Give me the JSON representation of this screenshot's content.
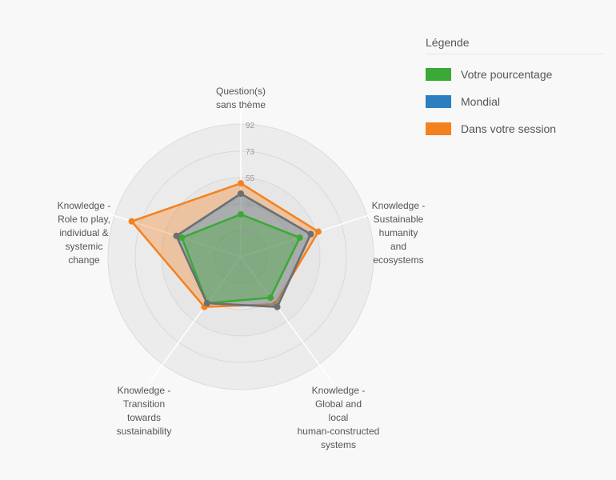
{
  "chart_data": {
    "type": "radar",
    "axes": [
      "Question(s)\nsans thème",
      "Knowledge -\nSustainable\nhumanity\nand\necosystems",
      "Knowledge -\nGlobal and\nlocal\nhuman-constructed\nsystems",
      "Knowledge -\nTransition\ntowards\nsustainability",
      "Knowledge -\nRole to play,\nindividual &\nsystemic\nchange"
    ],
    "ticks": [
      18,
      37,
      55,
      73,
      92
    ],
    "rmax": 92,
    "series": [
      {
        "name": "Dans votre session",
        "color": "#f4811f",
        "values": [
          64,
          71,
          51,
          54,
          100
        ]
      },
      {
        "name": "Mondial",
        "color": "#2c7fbf",
        "values": [
          55,
          64,
          54,
          50,
          59
        ]
      },
      {
        "name": "Votre pourcentage",
        "color": "#3aa935",
        "values": [
          37,
          54,
          44,
          50,
          54
        ]
      }
    ],
    "legend_position": "top-right",
    "grid": true
  },
  "legend": {
    "title": "Légende",
    "items": [
      {
        "label": "Votre pourcentage",
        "color": "#3aa935"
      },
      {
        "label": "Mondial",
        "color": "#2c7fbf"
      },
      {
        "label": "Dans votre session",
        "color": "#f4811f"
      }
    ]
  }
}
